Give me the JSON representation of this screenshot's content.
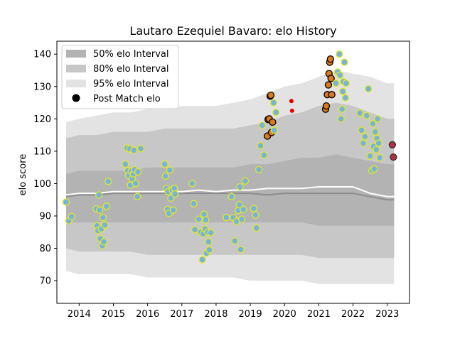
{
  "chart_data": {
    "type": "scatter",
    "title": "Lautaro Ezequiel Bavaro: elo History",
    "xlabel": "",
    "ylabel": "elo score",
    "xlim": [
      2013.35,
      2023.65
    ],
    "ylim": [
      63,
      144
    ],
    "xticks": [
      2014,
      2015,
      2016,
      2017,
      2018,
      2019,
      2020,
      2021,
      2022,
      2023
    ],
    "yticks": [
      70,
      80,
      90,
      100,
      110,
      120,
      130,
      140
    ],
    "legend_position": "top-left",
    "legend": [
      {
        "label": "50% elo Interval",
        "kind": "patch",
        "color": "#b3b3b3"
      },
      {
        "label": "80% elo Interval",
        "kind": "patch",
        "color": "#c7c7c7"
      },
      {
        "label": "95% elo Interval",
        "kind": "patch",
        "color": "#e3e3e3"
      },
      {
        "label": "Post Match elo",
        "kind": "marker",
        "color": "#000000"
      }
    ],
    "colors": {
      "band95": "#e3e3e3",
      "band80": "#c7c7c7",
      "band50": "#b3b3b3",
      "median_line": "#8c8c8c",
      "mean_line": "#ffffff",
      "point_face": "#78b4d6",
      "point_edge": "#e6e62a",
      "highlight_face": "#d97a1f",
      "highlight_edge": "#000000",
      "red_point": "#e00000",
      "final_face": "#b03045",
      "final_edge": "#303030"
    },
    "bands": {
      "x": [
        2013.62,
        2014.0,
        2014.5,
        2015.0,
        2015.5,
        2016.0,
        2016.5,
        2017.0,
        2017.5,
        2018.0,
        2018.5,
        2019.0,
        2019.5,
        2020.0,
        2020.5,
        2021.0,
        2021.5,
        2022.0,
        2022.5,
        2023.0,
        2023.2
      ],
      "p95_hi": [
        119,
        120,
        121,
        122,
        122,
        123,
        123,
        124,
        124,
        124,
        125,
        126,
        128,
        130,
        131,
        133,
        135,
        134,
        133,
        131,
        131
      ],
      "p80_hi": [
        114,
        115,
        115,
        116,
        116,
        116,
        117,
        117,
        117,
        117,
        117,
        118,
        119,
        121,
        122,
        124,
        125,
        124,
        122,
        120,
        120
      ],
      "p50_hi": [
        103,
        104,
        104,
        104,
        104,
        105,
        105,
        105,
        105,
        105,
        105,
        106,
        106,
        107,
        108,
        108,
        109,
        108,
        107,
        106,
        106
      ],
      "p50_lo": [
        88,
        88,
        88,
        88,
        88,
        88,
        88,
        88,
        88,
        88,
        88,
        88,
        88,
        88,
        88,
        87,
        87,
        87,
        87,
        87,
        87
      ],
      "p80_lo": [
        80,
        79,
        79,
        79,
        79,
        78,
        78,
        78,
        78,
        78,
        78,
        78,
        78,
        78,
        78,
        77,
        77,
        77,
        77,
        77,
        77
      ],
      "p95_lo": [
        73,
        72,
        72,
        72,
        72,
        71,
        71,
        71,
        71,
        71,
        71,
        70,
        70,
        70,
        70,
        69,
        69,
        69,
        69,
        69,
        69
      ]
    },
    "median_line": {
      "x": [
        2013.62,
        2014.0,
        2014.5,
        2015.0,
        2015.5,
        2016.0,
        2016.5,
        2017.0,
        2017.5,
        2018.0,
        2018.5,
        2019.0,
        2019.5,
        2020.0,
        2020.5,
        2021.0,
        2021.5,
        2022.0,
        2022.5,
        2023.0,
        2023.2
      ],
      "y": [
        96,
        96.5,
        96.5,
        97,
        97,
        97,
        97,
        97,
        97,
        97,
        97,
        97,
        96.5,
        97,
        97,
        97,
        97,
        97,
        96,
        95,
        95
      ]
    },
    "mean_line": {
      "x": [
        2013.62,
        2014.0,
        2014.5,
        2015.0,
        2015.5,
        2016.0,
        2016.5,
        2017.0,
        2017.5,
        2018.0,
        2018.5,
        2019.0,
        2019.5,
        2020.0,
        2020.5,
        2021.0,
        2021.5,
        2022.0,
        2022.5,
        2023.0,
        2023.2
      ],
      "y": [
        96.5,
        97,
        97,
        97.5,
        97.5,
        97.5,
        97.5,
        97.5,
        98,
        97.5,
        98,
        98,
        98.5,
        98.5,
        98.5,
        99,
        99,
        99,
        97,
        96,
        96
      ]
    },
    "points": [
      {
        "x": 2013.62,
        "y": 94.3
      },
      {
        "x": 2013.7,
        "y": 88.5
      },
      {
        "x": 2013.78,
        "y": 89.8
      },
      {
        "x": 2014.5,
        "y": 92.2
      },
      {
        "x": 2014.52,
        "y": 87.0
      },
      {
        "x": 2014.55,
        "y": 85.5
      },
      {
        "x": 2014.58,
        "y": 96.5
      },
      {
        "x": 2014.6,
        "y": 91.8
      },
      {
        "x": 2014.62,
        "y": 83.0
      },
      {
        "x": 2014.65,
        "y": 86.0
      },
      {
        "x": 2014.68,
        "y": 80.8
      },
      {
        "x": 2014.7,
        "y": 89.5
      },
      {
        "x": 2014.72,
        "y": 82.0
      },
      {
        "x": 2014.75,
        "y": 87.2
      },
      {
        "x": 2014.8,
        "y": 93.0
      },
      {
        "x": 2014.85,
        "y": 100.7
      },
      {
        "x": 2015.35,
        "y": 106.0
      },
      {
        "x": 2015.4,
        "y": 111.0
      },
      {
        "x": 2015.42,
        "y": 104.0
      },
      {
        "x": 2015.45,
        "y": 102.5
      },
      {
        "x": 2015.48,
        "y": 110.7
      },
      {
        "x": 2015.5,
        "y": 99.5
      },
      {
        "x": 2015.52,
        "y": 103.8
      },
      {
        "x": 2015.55,
        "y": 101.5
      },
      {
        "x": 2015.58,
        "y": 103.0
      },
      {
        "x": 2015.6,
        "y": 110.3
      },
      {
        "x": 2015.62,
        "y": 104.3
      },
      {
        "x": 2015.65,
        "y": 100.0
      },
      {
        "x": 2015.7,
        "y": 96.0
      },
      {
        "x": 2015.72,
        "y": 103.6
      },
      {
        "x": 2015.8,
        "y": 110.8
      },
      {
        "x": 2016.5,
        "y": 106.0
      },
      {
        "x": 2016.52,
        "y": 102.3
      },
      {
        "x": 2016.55,
        "y": 98.5
      },
      {
        "x": 2016.58,
        "y": 92.0
      },
      {
        "x": 2016.6,
        "y": 97.5
      },
      {
        "x": 2016.62,
        "y": 90.8
      },
      {
        "x": 2016.65,
        "y": 104.2
      },
      {
        "x": 2016.68,
        "y": 95.5
      },
      {
        "x": 2016.72,
        "y": 98.0
      },
      {
        "x": 2016.75,
        "y": 91.8
      },
      {
        "x": 2016.78,
        "y": 98.5
      },
      {
        "x": 2016.8,
        "y": 96.8
      },
      {
        "x": 2017.3,
        "y": 100.0
      },
      {
        "x": 2017.35,
        "y": 93.8
      },
      {
        "x": 2017.38,
        "y": 85.8
      },
      {
        "x": 2017.5,
        "y": 89.0
      },
      {
        "x": 2017.55,
        "y": 85.0
      },
      {
        "x": 2017.6,
        "y": 76.5
      },
      {
        "x": 2017.62,
        "y": 84.5
      },
      {
        "x": 2017.65,
        "y": 90.5
      },
      {
        "x": 2017.68,
        "y": 86.0
      },
      {
        "x": 2017.7,
        "y": 88.8
      },
      {
        "x": 2017.72,
        "y": 78.5
      },
      {
        "x": 2017.75,
        "y": 85.0
      },
      {
        "x": 2017.78,
        "y": 82.0
      },
      {
        "x": 2017.8,
        "y": 79.5
      },
      {
        "x": 2017.85,
        "y": 84.8
      },
      {
        "x": 2018.3,
        "y": 89.5
      },
      {
        "x": 2018.45,
        "y": 96.0
      },
      {
        "x": 2018.5,
        "y": 89.5
      },
      {
        "x": 2018.55,
        "y": 82.3
      },
      {
        "x": 2018.6,
        "y": 88.3
      },
      {
        "x": 2018.65,
        "y": 91.7
      },
      {
        "x": 2018.68,
        "y": 93.5
      },
      {
        "x": 2018.7,
        "y": 99.0
      },
      {
        "x": 2018.72,
        "y": 79.6
      },
      {
        "x": 2018.75,
        "y": 89.0
      },
      {
        "x": 2018.8,
        "y": 92.0
      },
      {
        "x": 2018.85,
        "y": 100.8
      },
      {
        "x": 2019.1,
        "y": 92.3
      },
      {
        "x": 2019.15,
        "y": 90.3
      },
      {
        "x": 2019.18,
        "y": 86.3
      },
      {
        "x": 2019.25,
        "y": 104.3
      },
      {
        "x": 2019.3,
        "y": 111.7
      },
      {
        "x": 2019.35,
        "y": 118.0
      },
      {
        "x": 2019.4,
        "y": 108.8
      },
      {
        "x": 2019.5,
        "y": 114.7,
        "kind": "highlight"
      },
      {
        "x": 2019.52,
        "y": 119.8,
        "kind": "highlight"
      },
      {
        "x": 2019.55,
        "y": 120.0,
        "kind": "highlight"
      },
      {
        "x": 2019.58,
        "y": 127.0,
        "kind": "highlight"
      },
      {
        "x": 2019.6,
        "y": 127.3,
        "kind": "highlight"
      },
      {
        "x": 2019.62,
        "y": 115.8,
        "kind": "highlight"
      },
      {
        "x": 2019.65,
        "y": 119.0,
        "kind": "highlight"
      },
      {
        "x": 2019.68,
        "y": 125.0
      },
      {
        "x": 2019.7,
        "y": 116.5
      },
      {
        "x": 2019.75,
        "y": 122.0
      },
      {
        "x": 2020.2,
        "y": 125.5,
        "kind": "red"
      },
      {
        "x": 2020.22,
        "y": 122.5,
        "kind": "red"
      },
      {
        "x": 2021.2,
        "y": 123.0,
        "kind": "highlight"
      },
      {
        "x": 2021.22,
        "y": 124.0,
        "kind": "highlight"
      },
      {
        "x": 2021.25,
        "y": 127.5,
        "kind": "highlight"
      },
      {
        "x": 2021.28,
        "y": 130.5,
        "kind": "highlight"
      },
      {
        "x": 2021.3,
        "y": 134.0,
        "kind": "highlight"
      },
      {
        "x": 2021.32,
        "y": 137.5,
        "kind": "highlight"
      },
      {
        "x": 2021.34,
        "y": 138.5,
        "kind": "highlight"
      },
      {
        "x": 2021.36,
        "y": 132.5,
        "kind": "highlight"
      },
      {
        "x": 2021.38,
        "y": 127.5,
        "kind": "highlight"
      },
      {
        "x": 2021.5,
        "y": 131.0
      },
      {
        "x": 2021.55,
        "y": 134.5
      },
      {
        "x": 2021.6,
        "y": 140.0
      },
      {
        "x": 2021.62,
        "y": 133.5
      },
      {
        "x": 2021.65,
        "y": 120.0
      },
      {
        "x": 2021.68,
        "y": 123.0
      },
      {
        "x": 2021.7,
        "y": 128.5
      },
      {
        "x": 2021.72,
        "y": 131.5
      },
      {
        "x": 2021.75,
        "y": 137.5
      },
      {
        "x": 2021.78,
        "y": 126.5
      },
      {
        "x": 2021.8,
        "y": 131.0
      },
      {
        "x": 2022.2,
        "y": 121.8
      },
      {
        "x": 2022.25,
        "y": 116.5
      },
      {
        "x": 2022.3,
        "y": 112.5
      },
      {
        "x": 2022.35,
        "y": 114.5
      },
      {
        "x": 2022.4,
        "y": 121.0
      },
      {
        "x": 2022.45,
        "y": 129.3
      },
      {
        "x": 2022.5,
        "y": 108.5
      },
      {
        "x": 2022.55,
        "y": 104.0
      },
      {
        "x": 2022.58,
        "y": 118.5
      },
      {
        "x": 2022.6,
        "y": 111.5
      },
      {
        "x": 2022.62,
        "y": 104.5
      },
      {
        "x": 2022.65,
        "y": 116.0
      },
      {
        "x": 2022.68,
        "y": 110.5
      },
      {
        "x": 2022.7,
        "y": 114.0
      },
      {
        "x": 2022.72,
        "y": 120.0
      },
      {
        "x": 2022.75,
        "y": 112.5
      },
      {
        "x": 2022.78,
        "y": 108.0
      },
      {
        "x": 2023.15,
        "y": 112.0,
        "kind": "final"
      },
      {
        "x": 2023.18,
        "y": 108.2,
        "kind": "final"
      }
    ]
  }
}
